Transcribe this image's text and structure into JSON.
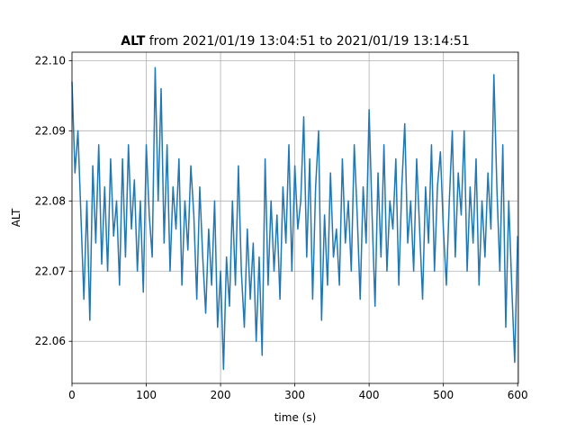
{
  "chart_data": {
    "type": "line",
    "title": {
      "bold": "ALT",
      "text": "from 2021/01/19 13:04:51 to 2021/01/19 13:14:51"
    },
    "xlabel": "time (s)",
    "ylabel": "ALT",
    "x": [
      0,
      4,
      8,
      12,
      16,
      20,
      24,
      28,
      32,
      36,
      40,
      44,
      48,
      52,
      56,
      60,
      64,
      68,
      72,
      76,
      80,
      84,
      88,
      92,
      96,
      100,
      104,
      108,
      112,
      116,
      120,
      124,
      128,
      132,
      136,
      140,
      144,
      148,
      152,
      156,
      160,
      164,
      168,
      172,
      176,
      180,
      184,
      188,
      192,
      196,
      200,
      204,
      208,
      212,
      216,
      220,
      224,
      228,
      232,
      236,
      240,
      244,
      248,
      252,
      256,
      260,
      264,
      268,
      272,
      276,
      280,
      284,
      288,
      292,
      296,
      300,
      304,
      308,
      312,
      316,
      320,
      324,
      328,
      332,
      336,
      340,
      344,
      348,
      352,
      356,
      360,
      364,
      368,
      372,
      376,
      380,
      384,
      388,
      392,
      396,
      400,
      404,
      408,
      412,
      416,
      420,
      424,
      428,
      432,
      436,
      440,
      444,
      448,
      452,
      456,
      460,
      464,
      468,
      472,
      476,
      480,
      484,
      488,
      492,
      496,
      500,
      504,
      508,
      512,
      516,
      520,
      524,
      528,
      532,
      536,
      540,
      544,
      548,
      552,
      556,
      560,
      564,
      568,
      572,
      576,
      580,
      584,
      588,
      592,
      596,
      600
    ],
    "series": [
      {
        "name": "ALT",
        "color": "#1f77b4",
        "values": [
          22.097,
          22.084,
          22.09,
          22.078,
          22.066,
          22.08,
          22.063,
          22.085,
          22.074,
          22.088,
          22.071,
          22.082,
          22.07,
          22.086,
          22.075,
          22.08,
          22.068,
          22.086,
          22.072,
          22.088,
          22.076,
          22.083,
          22.07,
          22.08,
          22.067,
          22.088,
          22.078,
          22.072,
          22.099,
          22.08,
          22.096,
          22.074,
          22.088,
          22.07,
          22.082,
          22.076,
          22.086,
          22.068,
          22.08,
          22.073,
          22.085,
          22.078,
          22.066,
          22.082,
          22.072,
          22.064,
          22.076,
          22.068,
          22.08,
          22.062,
          22.07,
          22.056,
          22.072,
          22.065,
          22.08,
          22.068,
          22.085,
          22.07,
          22.062,
          22.076,
          22.066,
          22.074,
          22.06,
          22.072,
          22.058,
          22.086,
          22.068,
          22.08,
          22.07,
          22.078,
          22.066,
          22.082,
          22.074,
          22.088,
          22.07,
          22.085,
          22.076,
          22.08,
          22.092,
          22.072,
          22.086,
          22.066,
          22.082,
          22.09,
          22.063,
          22.078,
          22.068,
          22.084,
          22.072,
          22.076,
          22.068,
          22.086,
          22.074,
          22.08,
          22.07,
          22.088,
          22.078,
          22.066,
          22.082,
          22.074,
          22.093,
          22.078,
          22.065,
          22.084,
          22.072,
          22.088,
          22.07,
          22.08,
          22.076,
          22.086,
          22.068,
          22.082,
          22.091,
          22.074,
          22.08,
          22.07,
          22.086,
          22.076,
          22.066,
          22.082,
          22.074,
          22.088,
          22.07,
          22.082,
          22.087,
          22.076,
          22.068,
          22.08,
          22.09,
          22.072,
          22.084,
          22.078,
          22.09,
          22.07,
          22.082,
          22.074,
          22.086,
          22.068,
          22.08,
          22.072,
          22.084,
          22.076,
          22.098,
          22.082,
          22.07,
          22.088,
          22.062,
          22.08,
          22.068,
          22.057,
          22.075
        ]
      }
    ],
    "xlim": [
      0,
      601
    ],
    "xticks": [
      0,
      100,
      200,
      300,
      400,
      500,
      600
    ],
    "ylim": [
      22.054,
      22.1012
    ],
    "yticks": [
      22.06,
      22.07,
      22.08,
      22.09,
      {
        "value": 22.1,
        "label": "22.10"
      }
    ],
    "grid": true
  }
}
